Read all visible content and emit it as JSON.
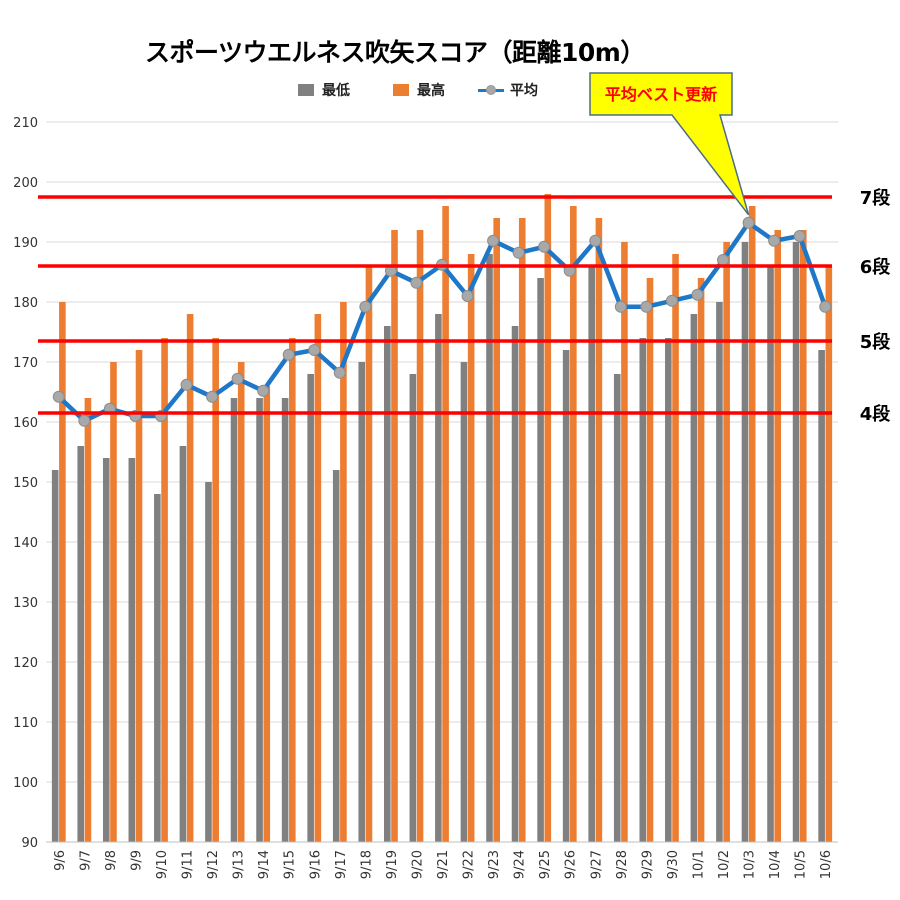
{
  "chart_data": {
    "type": "bar",
    "title": "スポーツウエルネス吹矢スコア（距離10m）",
    "xlabel": "",
    "ylabel": "",
    "ylim": [
      90,
      210
    ],
    "yticks": [
      90,
      100,
      110,
      120,
      130,
      140,
      150,
      160,
      170,
      180,
      190,
      200,
      210
    ],
    "grid": true,
    "legend_position": "top",
    "categories": [
      "9/6",
      "9/7",
      "9/8",
      "9/9",
      "9/10",
      "9/11",
      "9/12",
      "9/13",
      "9/14",
      "9/15",
      "9/16",
      "9/17",
      "9/18",
      "9/19",
      "9/20",
      "9/21",
      "9/22",
      "9/23",
      "9/24",
      "9/25",
      "9/26",
      "9/27",
      "9/28",
      "9/29",
      "9/30",
      "10/1",
      "10/2",
      "10/3",
      "10/4",
      "10/5",
      "10/6"
    ],
    "series": [
      {
        "name": "最低",
        "type": "bar",
        "color": "#808080",
        "values": [
          152,
          156,
          154,
          154,
          148,
          156,
          150,
          164,
          164,
          164,
          168,
          152,
          170,
          176,
          168,
          178,
          170,
          188,
          176,
          184,
          172,
          186,
          168,
          174,
          174,
          178,
          180,
          190,
          186,
          190,
          172
        ]
      },
      {
        "name": "最高",
        "type": "bar",
        "color": "#ed7d31",
        "values": [
          180,
          164,
          170,
          172,
          174,
          178,
          174,
          170,
          166,
          174,
          178,
          180,
          186,
          192,
          192,
          196,
          188,
          194,
          194,
          198,
          196,
          194,
          190,
          184,
          188,
          184,
          190,
          196,
          192,
          192,
          186
        ]
      },
      {
        "name": "平均",
        "type": "line",
        "color": "#1f77c8",
        "marker_color": "#a8a8a8",
        "values": [
          164.2,
          160.2,
          162.2,
          161.0,
          161.0,
          166.2,
          164.2,
          167.2,
          165.2,
          171.2,
          172.0,
          168.2,
          179.2,
          185.2,
          183.2,
          186.2,
          181.0,
          190.2,
          188.2,
          189.2,
          185.2,
          190.2,
          179.2,
          179.2,
          180.2,
          181.2,
          187.0,
          193.2,
          190.2,
          191.0,
          179.2
        ]
      }
    ],
    "reference_lines": [
      {
        "label": "7段",
        "value": 197.5,
        "color": "#ff0000"
      },
      {
        "label": "6段",
        "value": 186.0,
        "color": "#ff0000"
      },
      {
        "label": "5段",
        "value": 173.5,
        "color": "#ff0000"
      },
      {
        "label": "4段",
        "value": 161.5,
        "color": "#ff0000"
      }
    ],
    "callout": {
      "text": "平均ベスト更新",
      "target_category": "10/3",
      "fill": "#ffff00",
      "text_color": "#ff0000"
    }
  }
}
